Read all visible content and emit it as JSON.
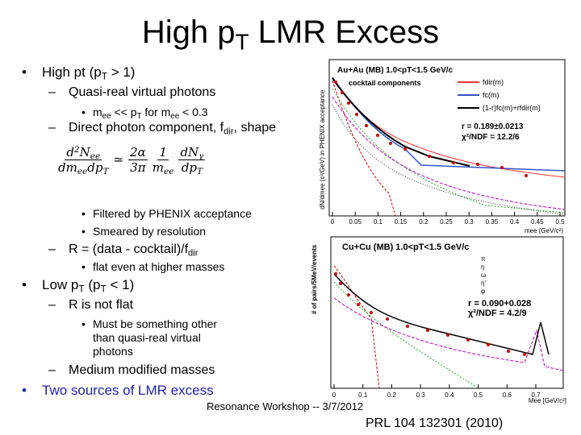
{
  "title": [
    {
      "t": "High p"
    },
    {
      "t": "T",
      "sub": true
    },
    {
      "t": " LMR Excess"
    }
  ],
  "bullets": [
    {
      "marker": "•",
      "level": 1,
      "parts": [
        {
          "t": "High pt (p"
        },
        {
          "t": "T",
          "sub": true
        },
        {
          "t": " > 1)"
        }
      ]
    },
    {
      "marker": "–",
      "level": 2,
      "parts": [
        {
          "t": "Quasi-real virtual photons"
        }
      ]
    },
    {
      "marker": "•",
      "level": 3,
      "parts": [
        {
          "t": "m"
        },
        {
          "t": "ee",
          "sub": true
        },
        {
          "t": " << p"
        },
        {
          "t": "T",
          "sub": true
        },
        {
          "t": " for m"
        },
        {
          "t": "ee",
          "sub": true
        },
        {
          "t": " < 0.3"
        }
      ]
    },
    {
      "marker": "–",
      "level": 2,
      "parts": [
        {
          "t": "Direct photon component, f"
        },
        {
          "t": "dir",
          "sub": true
        },
        {
          "t": ", shape"
        }
      ]
    },
    {
      "marker": "•",
      "level": 3,
      "parts": [
        {
          "t": "Filtered by PHENIX acceptance"
        }
      ]
    },
    {
      "marker": "•",
      "level": 3,
      "parts": [
        {
          "t": "Smeared by resolution"
        }
      ]
    },
    {
      "marker": "–",
      "level": 2,
      "parts": [
        {
          "t": "R = (data - cocktail)/f"
        },
        {
          "t": "dir",
          "sub": true
        }
      ]
    },
    {
      "marker": "•",
      "level": 3,
      "parts": [
        {
          "t": "flat even at higher masses"
        }
      ]
    },
    {
      "marker": "•",
      "level": 1,
      "parts": [
        {
          "t": "Low p"
        },
        {
          "t": "T",
          "sub": true
        },
        {
          "t": " (p"
        },
        {
          "t": "T",
          "sub": true
        },
        {
          "t": " < 1)"
        }
      ]
    },
    {
      "marker": "–",
      "level": 2,
      "parts": [
        {
          "t": "R is not flat"
        }
      ]
    },
    {
      "marker": "•",
      "level": 3,
      "parts": [
        {
          "t": "Must be something other than quasi-real virtual photons"
        }
      ]
    },
    {
      "marker": "–",
      "level": 2,
      "parts": [
        {
          "t": "Medium modified masses"
        }
      ]
    },
    {
      "marker": "•",
      "level": 1,
      "accent": true,
      "parts": [
        {
          "t": "Two sources of LMR excess"
        }
      ]
    }
  ],
  "formula": {
    "frac1": {
      "num": [
        {
          "t": "d"
        },
        {
          "t": "2",
          "sup": true
        },
        {
          "t": "N"
        },
        {
          "t": "ee",
          "sub": true
        }
      ],
      "den": [
        {
          "t": "dm"
        },
        {
          "t": "ee",
          "sub": true
        },
        {
          "t": "dp"
        },
        {
          "t": "T",
          "sub": true
        }
      ]
    },
    "approx": "≃",
    "frac2": {
      "num": [
        {
          "t": "2α"
        }
      ],
      "den": [
        {
          "t": "3π"
        }
      ]
    },
    "frac3": {
      "num": [
        {
          "t": "1"
        }
      ],
      "den": [
        {
          "t": "m"
        },
        {
          "t": "ee",
          "sub": true
        }
      ]
    },
    "frac4": {
      "num": [
        {
          "t": "dN"
        },
        {
          "t": "γ",
          "sub": true
        }
      ],
      "den": [
        {
          "t": "dp"
        },
        {
          "t": "T",
          "sub": true
        }
      ]
    }
  },
  "plot1": {
    "header": "Au+Au (MB) 1.0<pT<1.5 GeV/c",
    "subheader": "cocktail components",
    "legend": [
      "fdir(m)",
      "fc(m)",
      "(1-r)fc(m)+rfdir(m)"
    ],
    "fit": [
      "r = 0.189±0.0213",
      "χ²/NDF = 12.2/6"
    ],
    "xticks": [
      0,
      0.05,
      0.1,
      0.15,
      0.2,
      0.25,
      0.3,
      0.35,
      0.4,
      0.45,
      0.5
    ],
    "xlabel": "mee (GeV/c²)",
    "ylabel": "dN/dmee (c²/GeV) in PHENIX acceptance"
  },
  "plot2": {
    "header": "Cu+Cu (MB) 1.0<pT<1.5 GeV/c",
    "legend": [
      "π",
      "η",
      "ω",
      "η'",
      "φ"
    ],
    "fit": [
      "r = 0.090+0.028",
      "χ²/NDF = 4.2/9"
    ],
    "xticks": [
      0,
      0.1,
      0.2,
      0.3,
      0.4,
      0.5,
      0.6,
      0.7
    ],
    "xlabel": "Mee [GeV/c²]",
    "ylabel": "# of pairs/5MeV/events"
  },
  "footer": {
    "event": "Resonance Workshop -- 3/7/2012",
    "reference": "PRL 104 132301 (2010)"
  }
}
